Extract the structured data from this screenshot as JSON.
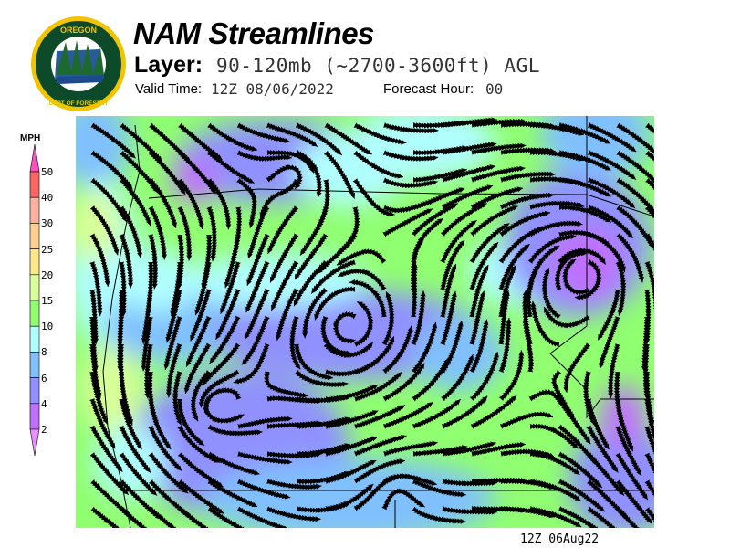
{
  "header": {
    "title": "NAM Streamlines",
    "layer_label": "Layer:",
    "layer_value": "90-120mb (~2700-3600ft) AGL",
    "valid_label": "Valid Time:",
    "valid_value": "12Z 08/06/2022",
    "forecast_hour_label": "Forecast Hour:",
    "forecast_hour_value": "00"
  },
  "logo": {
    "text_top": "OREGON",
    "text_bottom": "DEPARTMENT OF FORESTRY"
  },
  "legend": {
    "units": "MPH",
    "ticks": [
      "50",
      "40",
      "30",
      "25",
      "20",
      "15",
      "10",
      "8",
      "6",
      "4",
      "2"
    ],
    "colors": {
      "above_50": "#ff50c0",
      "40-50": "#ff6464",
      "30-40": "#ffb0a0",
      "25-30": "#ffd090",
      "20-25": "#ffe888",
      "15-20": "#d8ff98",
      "10-15": "#90ff70",
      "8-10": "#b0ffff",
      "6-8": "#80c0ff",
      "4-6": "#9090ff",
      "2-4": "#c070ff",
      "below_2": "#e890ff"
    }
  },
  "footer": {
    "timestamp": "12Z 06Aug22"
  }
}
